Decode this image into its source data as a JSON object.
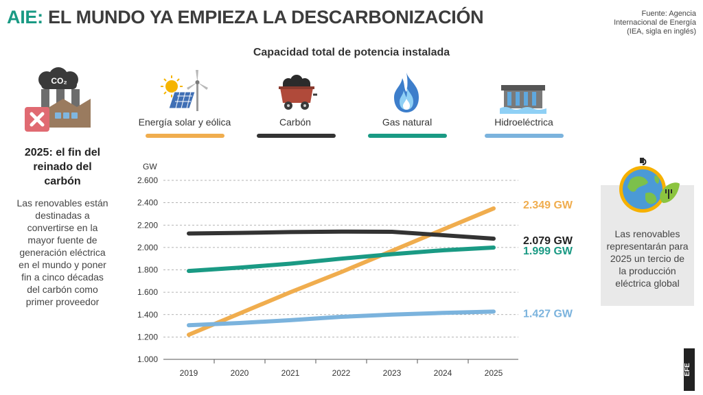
{
  "header": {
    "title_prefix": "AIE:",
    "title_main": "EL MUNDO YA EMPIEZA LA DESCARBONIZACIÓN",
    "source_lines": [
      "Fuente: Agencia",
      "Internacional de Energía",
      "(IEA, sigla en inglés)"
    ]
  },
  "subtitle": "Capacidad total de potencia instalada",
  "left_panel": {
    "icon_text": "CO₂",
    "heading_lines": [
      "2025: el fin del",
      "reinado del",
      "carbón"
    ],
    "body_lines": [
      "Las renovables están",
      "destinadas a",
      "convertirse en la",
      "mayor fuente de",
      "generación eléctrica",
      "en el mundo y poner",
      "fin a cinco décadas",
      "del carbón como",
      "primer proveedor"
    ]
  },
  "right_panel": {
    "text_lines": [
      "Las renovables",
      "representarán para",
      "2025 un tercio de",
      "la producción",
      "eléctrica global"
    ]
  },
  "legend": [
    {
      "label": "Energía solar y eólica",
      "color": "#f0ad4e",
      "icon": "solar-wind-icon"
    },
    {
      "label": "Carbón",
      "color": "#333333",
      "icon": "coal-cart-icon"
    },
    {
      "label": "Gas natural",
      "color": "#1a9a84",
      "icon": "gas-flame-icon"
    },
    {
      "label": "Hidroeléctrica",
      "color": "#7bb3dd",
      "icon": "hydro-dam-icon"
    }
  ],
  "brand_text": "EFE",
  "chart_data": {
    "type": "line",
    "title": "Capacidad total de potencia instalada",
    "ylabel": "GW",
    "x": [
      "2019",
      "2020",
      "2021",
      "2022",
      "2023",
      "2024",
      "2025"
    ],
    "ylim": [
      1000,
      2600
    ],
    "yticks": [
      1000,
      1200,
      1400,
      1600,
      1800,
      2000,
      2200,
      2400,
      2600
    ],
    "ytick_labels": [
      "1.000",
      "1.200",
      "1.400",
      "1.600",
      "1.800",
      "2.000",
      "2.200",
      "2.400",
      "2.600"
    ],
    "grid": "horizontal-dashed",
    "series": [
      {
        "name": "Energía solar y eólica",
        "color": "#f0ad4e",
        "values": [
          1220,
          1410,
          1600,
          1780,
          1970,
          2160,
          2349
        ],
        "end_label": "2.349 GW"
      },
      {
        "name": "Carbón",
        "color": "#333333",
        "values": [
          2125,
          2130,
          2138,
          2142,
          2140,
          2110,
          2079
        ],
        "end_label": "2.079 GW"
      },
      {
        "name": "Gas natural",
        "color": "#1a9a84",
        "values": [
          1790,
          1820,
          1855,
          1900,
          1940,
          1975,
          1999
        ],
        "end_label": "1.999 GW"
      },
      {
        "name": "Hidroeléctrica",
        "color": "#7bb3dd",
        "values": [
          1305,
          1325,
          1350,
          1380,
          1400,
          1415,
          1427
        ],
        "end_label": "1.427 GW"
      }
    ]
  }
}
